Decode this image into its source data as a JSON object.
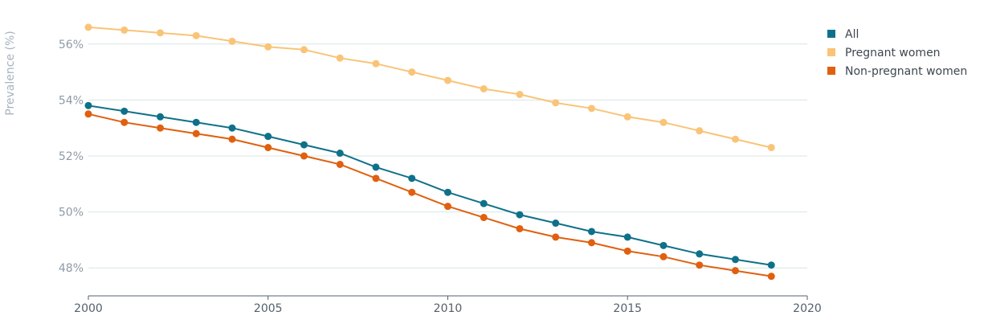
{
  "chart_data": {
    "type": "line",
    "title": "",
    "xlabel": "",
    "ylabel": "Prevalence (%)",
    "xlim": [
      2000,
      2020
    ],
    "ylim": [
      47,
      57
    ],
    "x_ticks": [
      2000,
      2005,
      2010,
      2015,
      2020
    ],
    "y_ticks": [
      48,
      50,
      52,
      54,
      56
    ],
    "y_tick_suffix": "%",
    "grid": "horizontal",
    "legend_position": "top-right",
    "x": [
      2000,
      2001,
      2002,
      2003,
      2004,
      2005,
      2006,
      2007,
      2008,
      2009,
      2010,
      2011,
      2012,
      2013,
      2014,
      2015,
      2016,
      2017,
      2018,
      2019
    ],
    "series": [
      {
        "name": "All",
        "color": "#0f7189",
        "values": [
          53.8,
          53.6,
          53.4,
          53.2,
          53.0,
          52.7,
          52.4,
          52.1,
          51.6,
          51.2,
          50.7,
          50.3,
          49.9,
          49.6,
          49.3,
          49.1,
          48.8,
          48.5,
          48.3,
          48.1
        ]
      },
      {
        "name": "Pregnant women",
        "color": "#f9c477",
        "values": [
          56.6,
          56.5,
          56.4,
          56.3,
          56.1,
          55.9,
          55.8,
          55.5,
          55.3,
          55.0,
          54.7,
          54.4,
          54.2,
          53.9,
          53.7,
          53.4,
          53.2,
          52.9,
          52.6,
          52.3
        ]
      },
      {
        "name": "Non-pregnant women",
        "color": "#e0600f",
        "values": [
          53.5,
          53.2,
          53.0,
          52.8,
          52.6,
          52.3,
          52.0,
          51.7,
          51.2,
          50.7,
          50.2,
          49.8,
          49.4,
          49.1,
          48.9,
          48.6,
          48.4,
          48.1,
          47.9,
          47.7
        ]
      }
    ]
  }
}
